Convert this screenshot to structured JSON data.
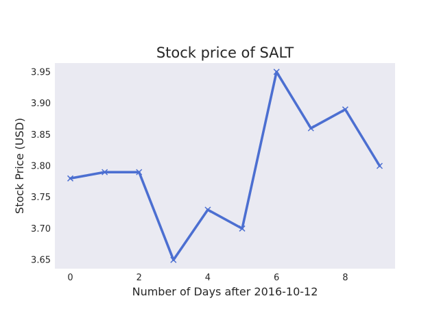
{
  "chart_data": {
    "type": "line",
    "title": "Stock price of SALT",
    "xlabel": "Number of Days after 2016-10-12",
    "ylabel": "Stock Price (USD)",
    "x": [
      0,
      1,
      2,
      3,
      4,
      5,
      6,
      7,
      8,
      9
    ],
    "series": [
      {
        "values": [
          3.78,
          3.79,
          3.79,
          3.65,
          3.73,
          3.7,
          3.95,
          3.86,
          3.89,
          3.8
        ]
      }
    ],
    "xlim": [
      -0.45,
      9.45
    ],
    "ylim": [
      3.636,
      3.964
    ],
    "xticks": [
      0,
      2,
      4,
      6,
      8
    ],
    "xtick_labels": [
      "0",
      "2",
      "4",
      "6",
      "8"
    ],
    "yticks": [
      3.65,
      3.7,
      3.75,
      3.8,
      3.85,
      3.9,
      3.95
    ],
    "ytick_labels": [
      "3.65",
      "3.70",
      "3.75",
      "3.80",
      "3.85",
      "3.90",
      "3.95"
    ],
    "marker": "x",
    "grid": false,
    "line_color": "#4c6fd1",
    "plot_background": "#eaeaf2"
  }
}
